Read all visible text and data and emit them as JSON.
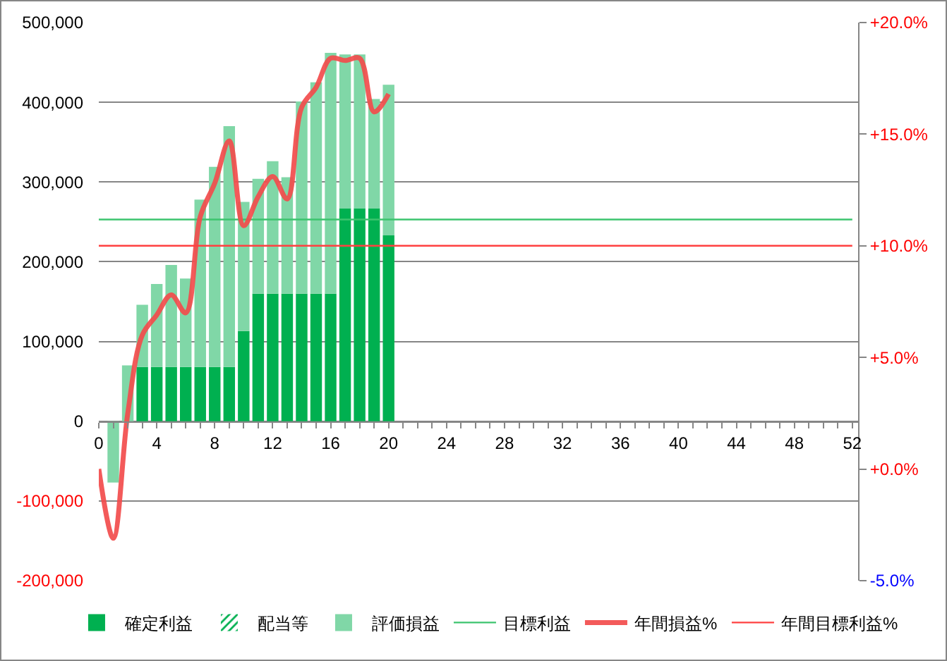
{
  "chart_data": {
    "type": "bar",
    "stacked": true,
    "x": [
      1,
      2,
      3,
      4,
      5,
      6,
      7,
      8,
      9,
      10,
      11,
      12,
      13,
      14,
      15,
      16,
      17,
      18,
      19,
      20
    ],
    "xlim": [
      0,
      52.4
    ],
    "xticks": [
      0,
      {
        "value": 1,
        "label": null
      },
      {
        "value": 2,
        "label": null
      },
      {
        "value": 3,
        "label": null
      },
      4,
      {
        "value": 5,
        "label": null
      },
      {
        "value": 6,
        "label": null
      },
      {
        "value": 7,
        "label": null
      },
      8,
      {
        "value": 9,
        "label": null
      },
      {
        "value": 10,
        "label": null
      },
      {
        "value": 11,
        "label": null
      },
      12,
      {
        "value": 13,
        "label": null
      },
      {
        "value": 14,
        "label": null
      },
      {
        "value": 15,
        "label": null
      },
      16,
      {
        "value": 17,
        "label": null
      },
      {
        "value": 18,
        "label": null
      },
      {
        "value": 19,
        "label": null
      },
      20,
      {
        "value": 21,
        "label": null
      },
      {
        "value": 22,
        "label": null
      },
      {
        "value": 23,
        "label": null
      },
      24,
      {
        "value": 25,
        "label": null
      },
      {
        "value": 26,
        "label": null
      },
      {
        "value": 27,
        "label": null
      },
      28,
      {
        "value": 29,
        "label": null
      },
      {
        "value": 30,
        "label": null
      },
      {
        "value": 31,
        "label": null
      },
      32,
      {
        "value": 33,
        "label": null
      },
      {
        "value": 34,
        "label": null
      },
      {
        "value": 35,
        "label": null
      },
      36,
      {
        "value": 37,
        "label": null
      },
      {
        "value": 38,
        "label": null
      },
      {
        "value": 39,
        "label": null
      },
      40,
      {
        "value": 41,
        "label": null
      },
      {
        "value": 42,
        "label": null
      },
      {
        "value": 43,
        "label": null
      },
      44,
      {
        "value": 45,
        "label": null
      },
      {
        "value": 46,
        "label": null
      },
      {
        "value": 47,
        "label": null
      },
      48,
      {
        "value": 49,
        "label": null
      },
      {
        "value": 50,
        "label": null
      },
      {
        "value": 51,
        "label": null
      },
      52
    ],
    "ylim": [
      -200000,
      500000
    ],
    "yticks": [
      {
        "value": -200000,
        "label": "-200,000"
      },
      {
        "value": -100000,
        "label": "-100,000"
      },
      0,
      {
        "value": 100000,
        "label": "100,000"
      },
      {
        "value": 200000,
        "label": "200,000"
      },
      {
        "value": 300000,
        "label": "300,000"
      },
      {
        "value": 400000,
        "label": "400,000"
      },
      {
        "value": 500000,
        "label": "500,000"
      }
    ],
    "y2lim": [
      -5,
      20
    ],
    "y2ticks": [
      {
        "value": -5,
        "label": "-5.0%"
      },
      {
        "value": 0,
        "label": "+0.0%"
      },
      {
        "value": 5,
        "label": "+5.0%"
      },
      {
        "value": 10,
        "label": "+10.0%"
      },
      {
        "value": 15,
        "label": "+15.0%"
      },
      {
        "value": 20,
        "label": "+20.0%"
      }
    ],
    "grid": "y",
    "legend": "bottom",
    "series": [
      {
        "name": "確定利益",
        "color": "#00b050",
        "values": [
          null,
          null,
          68000,
          68000,
          68000,
          68000,
          68000,
          68000,
          68000,
          113000,
          160000,
          160000,
          160000,
          160000,
          160000,
          160000,
          267000,
          267000,
          267000,
          233000
        ]
      },
      {
        "name": "配当等",
        "color": "#00b050",
        "values": [
          null,
          null,
          null,
          null,
          null,
          null,
          null,
          null,
          null,
          null,
          null,
          null,
          null,
          null,
          null,
          null,
          null,
          null,
          null,
          null
        ]
      },
      {
        "name": "評価損益",
        "color": "#80d7a7",
        "values": [
          -77000,
          70000,
          78000,
          104000,
          128000,
          111000,
          210000,
          251000,
          302000,
          162000,
          144000,
          166000,
          146000,
          241000,
          265000,
          302000,
          193000,
          193000,
          137000,
          189000
        ]
      },
      {
        "name": "目標利益",
        "type": "line",
        "color": "#3cc46e",
        "x": [
          0,
          52
        ],
        "values": [
          253000,
          253000
        ]
      },
      {
        "name": "年間損益%",
        "type": "line",
        "axis": "y2",
        "color": "#f24c4c",
        "x": [
          0,
          1,
          2,
          3,
          4,
          5,
          6,
          7,
          8,
          9,
          10,
          11,
          12,
          13,
          14,
          15,
          16,
          17,
          18,
          19,
          20
        ],
        "values": [
          0.0,
          -3.1,
          2.5,
          6.0,
          6.9,
          7.8,
          7.0,
          11.3,
          12.8,
          14.7,
          10.9,
          12.2,
          13.1,
          12.1,
          16.2,
          17.1,
          18.4,
          18.3,
          18.4,
          16.0,
          16.8
        ]
      },
      {
        "name": "年間目標利益%",
        "type": "line",
        "axis": "y2",
        "color": "#ff4040",
        "x": [
          0,
          52
        ],
        "values": [
          10,
          10
        ]
      }
    ]
  }
}
